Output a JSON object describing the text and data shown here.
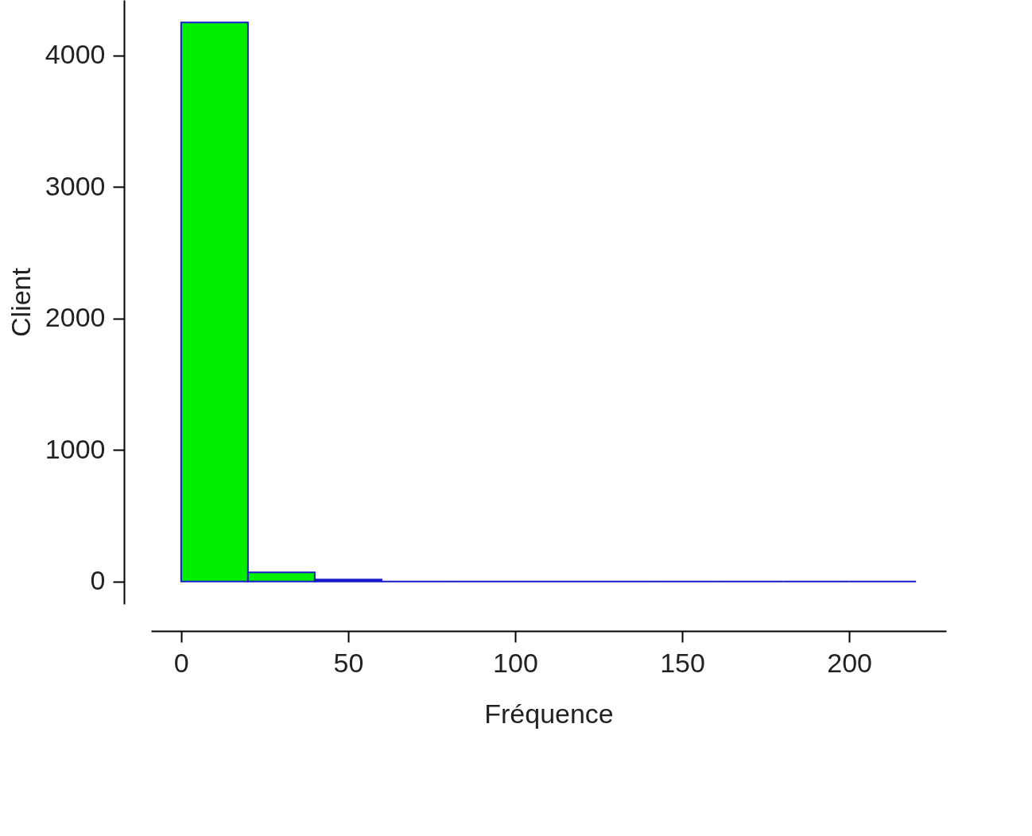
{
  "chart_data": {
    "type": "histogram",
    "xlabel": "Fréquence",
    "ylabel": "Client",
    "bins": [
      0,
      20,
      40,
      60,
      80,
      100,
      120,
      140,
      160,
      180,
      200,
      220
    ],
    "values": [
      4250,
      70,
      15,
      0,
      0,
      0,
      0,
      0,
      0,
      0,
      0
    ],
    "colors": [
      "#00ee00",
      "#00ee00",
      "#1a1acd",
      "#1a1acd",
      "#1a1acd",
      "#1a1acd",
      "#1a1acd",
      "#1a1acd",
      "#1a1acd",
      "#1a1acd",
      "#1a1acd"
    ],
    "xlim": [
      -9,
      229
    ],
    "ylim": [
      -170,
      4420
    ],
    "xticks": [
      0,
      50,
      100,
      150,
      200
    ],
    "yticks": [
      0,
      1000,
      2000,
      3000,
      4000
    ],
    "grid": false
  }
}
